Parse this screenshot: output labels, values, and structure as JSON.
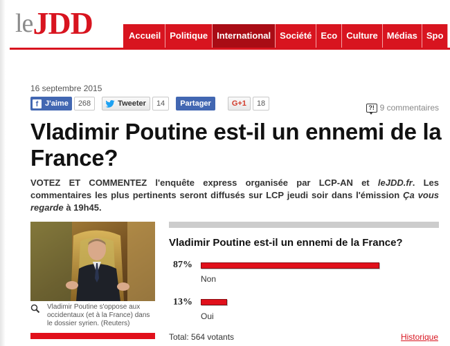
{
  "header": {
    "logo_le": "le",
    "logo_jdd": "JDD",
    "nav": [
      "Accueil",
      "Politique",
      "International",
      "Société",
      "Eco",
      "Culture",
      "Médias",
      "Spo"
    ],
    "active_nav_index": 2
  },
  "article": {
    "date": "16 septembre 2015",
    "title": "Vladimir Poutine est-il un ennemi de la France?",
    "lead_bold": "VOTEZ ET COMMENTEZ l'enquête express organisée par LCP-AN et ",
    "lead_site": "leJDD.fr",
    "lead_mid": ". Les commentaires les plus pertinents seront diffusés sur LCP jeudi soir dans l'émission ",
    "lead_show": "Ça vous regarde",
    "lead_end": " à 19h45.",
    "photo_caption": "Vladimir Poutine s'oppose aux occidentaux (et à la France) dans le dossier syrien. (Reuters)"
  },
  "social": {
    "facebook_label": "J'aime",
    "facebook_count": "268",
    "twitter_label": "Tweeter",
    "twitter_count": "14",
    "share_label": "Partager",
    "gplus_label": "G+1",
    "gplus_count": "18",
    "comments_icon_text": "?!",
    "comments_label": "9 commentaires"
  },
  "poll": {
    "question": "Vladimir Poutine est-il un ennemi de la France?",
    "options": [
      {
        "percent_label": "87%",
        "label": "Non",
        "percent": 87
      },
      {
        "percent_label": "13%",
        "label": "Oui",
        "percent": 13
      }
    ],
    "total": "Total: 564 votants",
    "history_link": "Historique"
  },
  "colors": {
    "brand_red": "#d8141f",
    "facebook_blue": "#4267b2"
  }
}
